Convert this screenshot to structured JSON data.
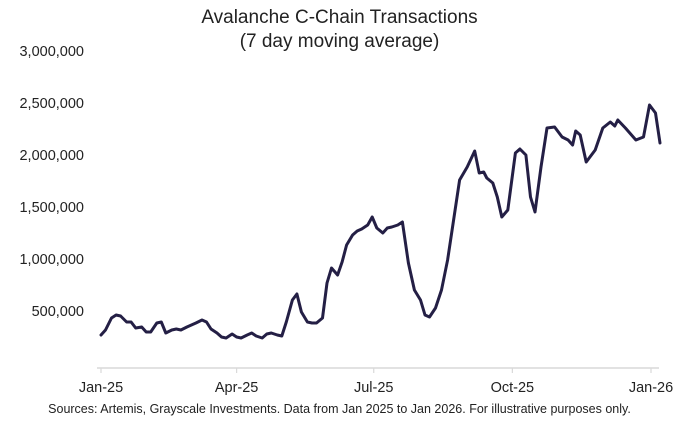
{
  "chart_data": {
    "type": "line",
    "title": "Avalanche C-Chain Transactions",
    "subtitle": "(7 day moving average)",
    "xlabel": "",
    "ylabel": "",
    "xlim": [
      "2025-01-01",
      "2026-01-05"
    ],
    "ylim": [
      0,
      3000000
    ],
    "y_ticks": [
      500000,
      1000000,
      1500000,
      2000000,
      2500000,
      3000000
    ],
    "y_tick_labels": [
      "500,000",
      "1,000,000",
      "1,500,000",
      "2,000,000",
      "2,500,000",
      "3,000,000"
    ],
    "x_ticks": [
      "2025-01-01",
      "2025-04-01",
      "2025-07-01",
      "2025-10-01",
      "2026-01-01"
    ],
    "x_tick_labels": [
      "Jan-25",
      "Apr-25",
      "Jul-25",
      "Oct-25",
      "Jan-26"
    ],
    "grid": false,
    "line_color": "#241f45",
    "series": [
      {
        "points": [
          [
            "2025-01-01",
            269000
          ],
          [
            "2025-01-04",
            317000
          ],
          [
            "2025-01-08",
            433000
          ],
          [
            "2025-01-11",
            462000
          ],
          [
            "2025-01-14",
            452000
          ],
          [
            "2025-01-18",
            394000
          ],
          [
            "2025-01-21",
            394000
          ],
          [
            "2025-01-24",
            337000
          ],
          [
            "2025-01-28",
            346000
          ],
          [
            "2025-01-31",
            298000
          ],
          [
            "2025-02-03",
            298000
          ],
          [
            "2025-02-07",
            385000
          ],
          [
            "2025-02-10",
            394000
          ],
          [
            "2025-02-13",
            288000
          ],
          [
            "2025-02-17",
            317000
          ],
          [
            "2025-02-20",
            327000
          ],
          [
            "2025-02-23",
            317000
          ],
          [
            "2025-02-27",
            346000
          ],
          [
            "2025-03-02",
            365000
          ],
          [
            "2025-03-05",
            385000
          ],
          [
            "2025-03-09",
            413000
          ],
          [
            "2025-03-12",
            394000
          ],
          [
            "2025-03-15",
            327000
          ],
          [
            "2025-03-19",
            288000
          ],
          [
            "2025-03-22",
            250000
          ],
          [
            "2025-03-25",
            240000
          ],
          [
            "2025-03-29",
            279000
          ],
          [
            "2025-04-01",
            250000
          ],
          [
            "2025-04-04",
            240000
          ],
          [
            "2025-04-08",
            269000
          ],
          [
            "2025-04-11",
            288000
          ],
          [
            "2025-04-14",
            260000
          ],
          [
            "2025-04-18",
            240000
          ],
          [
            "2025-04-21",
            279000
          ],
          [
            "2025-04-24",
            288000
          ],
          [
            "2025-04-28",
            269000
          ],
          [
            "2025-05-01",
            260000
          ],
          [
            "2025-05-04",
            394000
          ],
          [
            "2025-05-08",
            606000
          ],
          [
            "2025-05-11",
            663000
          ],
          [
            "2025-05-14",
            490000
          ],
          [
            "2025-05-18",
            394000
          ],
          [
            "2025-05-21",
            385000
          ],
          [
            "2025-05-24",
            385000
          ],
          [
            "2025-05-28",
            433000
          ],
          [
            "2025-05-31",
            769000
          ],
          [
            "2025-06-03",
            913000
          ],
          [
            "2025-06-07",
            846000
          ],
          [
            "2025-06-10",
            971000
          ],
          [
            "2025-06-13",
            1135000
          ],
          [
            "2025-06-17",
            1231000
          ],
          [
            "2025-06-20",
            1269000
          ],
          [
            "2025-06-23",
            1288000
          ],
          [
            "2025-06-27",
            1327000
          ],
          [
            "2025-06-30",
            1404000
          ],
          [
            "2025-07-03",
            1298000
          ],
          [
            "2025-07-07",
            1250000
          ],
          [
            "2025-07-10",
            1298000
          ],
          [
            "2025-07-13",
            1308000
          ],
          [
            "2025-07-17",
            1327000
          ],
          [
            "2025-07-20",
            1356000
          ],
          [
            "2025-07-24",
            962000
          ],
          [
            "2025-07-28",
            702000
          ],
          [
            "2025-08-01",
            606000
          ],
          [
            "2025-08-04",
            462000
          ],
          [
            "2025-08-07",
            442000
          ],
          [
            "2025-08-11",
            529000
          ],
          [
            "2025-08-15",
            702000
          ],
          [
            "2025-08-19",
            990000
          ],
          [
            "2025-08-22",
            1279000
          ],
          [
            "2025-08-27",
            1760000
          ],
          [
            "2025-09-01",
            1885000
          ],
          [
            "2025-09-06",
            2038000
          ],
          [
            "2025-09-09",
            1827000
          ],
          [
            "2025-09-12",
            1837000
          ],
          [
            "2025-09-14",
            1779000
          ],
          [
            "2025-09-18",
            1731000
          ],
          [
            "2025-09-21",
            1596000
          ],
          [
            "2025-09-24",
            1404000
          ],
          [
            "2025-09-28",
            1471000
          ],
          [
            "2025-10-03",
            2019000
          ],
          [
            "2025-10-06",
            2058000
          ],
          [
            "2025-10-10",
            2000000
          ],
          [
            "2025-10-13",
            1596000
          ],
          [
            "2025-10-16",
            1452000
          ],
          [
            "2025-10-20",
            1885000
          ],
          [
            "2025-10-24",
            2260000
          ],
          [
            "2025-10-29",
            2269000
          ],
          [
            "2025-11-03",
            2173000
          ],
          [
            "2025-11-07",
            2144000
          ],
          [
            "2025-11-10",
            2096000
          ],
          [
            "2025-11-12",
            2231000
          ],
          [
            "2025-11-15",
            2192000
          ],
          [
            "2025-11-19",
            1933000
          ],
          [
            "2025-11-25",
            2048000
          ],
          [
            "2025-11-30",
            2260000
          ],
          [
            "2025-12-05",
            2317000
          ],
          [
            "2025-12-08",
            2279000
          ],
          [
            "2025-12-10",
            2337000
          ],
          [
            "2025-12-15",
            2260000
          ],
          [
            "2025-12-22",
            2144000
          ],
          [
            "2025-12-27",
            2173000
          ],
          [
            "2025-12-31",
            2481000
          ],
          [
            "2026-01-04",
            2404000
          ],
          [
            "2026-01-07",
            2115000
          ]
        ]
      }
    ],
    "source": "Sources: Artemis, Grayscale Investments. Data from Jan 2025 to Jan 2026. For illustrative purposes only."
  }
}
